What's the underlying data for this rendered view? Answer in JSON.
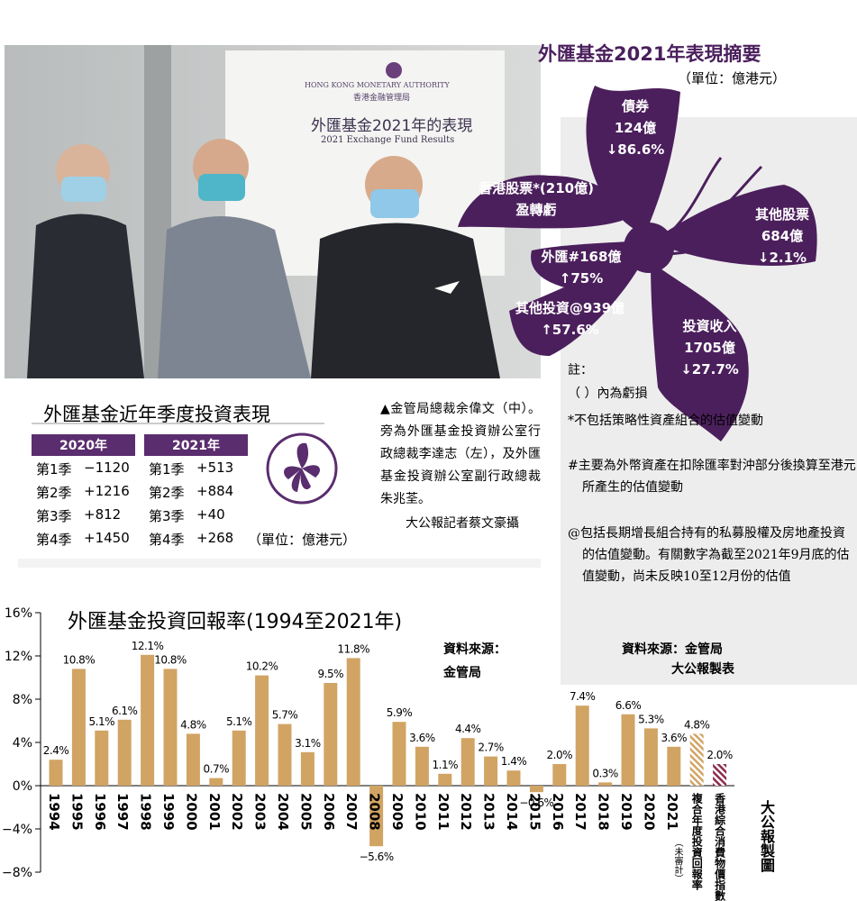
{
  "photo": {
    "backdrop": [
      "HONG KONG MONETARY AUTHORITY",
      "香港金融管理局",
      "外匯基金2021年的表現",
      "2021 Exchange Fund Results"
    ]
  },
  "summary": {
    "title": "外匯基金2021年表現摘要",
    "unit": "（單位：億港元）",
    "items": [
      {
        "lines": [
          "債券",
          "124億",
          "↓86.6%"
        ]
      },
      {
        "lines": [
          "香港股票*(210億)",
          "盈轉虧"
        ]
      },
      {
        "lines": [
          "其他股票",
          "684億",
          "↓2.1%"
        ]
      },
      {
        "lines": [
          "外匯#168億",
          "↑75%"
        ]
      },
      {
        "lines": [
          "其他投資@939億",
          "↑57.6%"
        ]
      },
      {
        "lines": [
          "投資收入",
          "1705億",
          "↓27.7%"
        ]
      }
    ],
    "notes_heading": "註：",
    "notes": [
      "（ ）內為虧損",
      "*不包括策略性資產組合的估值變動",
      "#主要為外幣資產在扣除匯率對沖部分後換算至港元所產生的估值變動",
      "@包括長期增長組合持有的私募股權及房地產投資的估值變動。有關數字為截至2021年9月底的估值變動，尚未反映10至12月份的估值"
    ],
    "source": "資料來源：金管局",
    "credit": "大公報製表"
  },
  "quarterly": {
    "title": "外匯基金近年季度投資表現",
    "unit": "（單位：億港元）",
    "years": [
      {
        "year": "2020年",
        "rows": [
          [
            "第1季",
            "−1120"
          ],
          [
            "第2季",
            "+1216"
          ],
          [
            "第3季",
            "+812"
          ],
          [
            "第4季",
            "+1450"
          ]
        ]
      },
      {
        "year": "2021年",
        "rows": [
          [
            "第1季",
            "+513"
          ],
          [
            "第2季",
            "+884"
          ],
          [
            "第3季",
            "+40"
          ],
          [
            "第4季",
            "+268"
          ]
        ]
      }
    ]
  },
  "caption": {
    "text": "▲金管局總裁余偉文（中）。旁為外匯基金投資辦公室行政總裁李達志（左），及外匯基金投資辦公室副行政總裁朱兆荃。",
    "credit": "大公報記者蔡文豪攝"
  },
  "chart_data": {
    "type": "bar",
    "title": "外匯基金投資回報率(1994至2021年)",
    "source": [
      "資料來源：",
      "金管局"
    ],
    "credit": "大公報製圖",
    "annotation": "（未審計）",
    "categories": [
      "1994",
      "1995",
      "1996",
      "1997",
      "1998",
      "1999",
      "2000",
      "2001",
      "2002",
      "2003",
      "2004",
      "2005",
      "2006",
      "2007",
      "2008",
      "2009",
      "2010",
      "2011",
      "2012",
      "2013",
      "2014",
      "2015",
      "2016",
      "2017",
      "2018",
      "2019",
      "2020",
      "2021",
      "複合年度投資回報率",
      "香港綜合消費物價指數"
    ],
    "values": [
      2.4,
      10.8,
      5.1,
      6.1,
      12.1,
      10.8,
      4.8,
      0.7,
      5.1,
      10.2,
      5.7,
      3.1,
      9.5,
      11.8,
      -5.6,
      5.9,
      3.6,
      1.1,
      4.4,
      2.7,
      1.4,
      -0.6,
      2.0,
      7.4,
      0.3,
      6.6,
      5.3,
      3.6,
      4.8,
      2.0
    ],
    "value_labels": [
      "2.4%",
      "10.8%",
      "5.1%",
      "6.1%",
      "12.1%",
      "10.8%",
      "4.8%",
      "0.7%",
      "5.1%",
      "10.2%",
      "5.7%",
      "3.1%",
      "9.5%",
      "11.8%",
      "−5.6%",
      "5.9%",
      "3.6%",
      "1.1%",
      "4.4%",
      "2.7%",
      "1.4%",
      "−0.6%",
      "2.0%",
      "7.4%",
      "0.3%",
      "6.6%",
      "5.3%",
      "3.6%",
      "4.8%",
      "2.0%"
    ],
    "colors": [
      "#d1a464",
      "#d1a464",
      "#d1a464",
      "#d1a464",
      "#d1a464",
      "#d1a464",
      "#d1a464",
      "#d1a464",
      "#d1a464",
      "#d1a464",
      "#d1a464",
      "#d1a464",
      "#d1a464",
      "#d1a464",
      "#d1a464",
      "#d1a464",
      "#d1a464",
      "#d1a464",
      "#d1a464",
      "#d1a464",
      "#d1a464",
      "#d1a464",
      "#d1a464",
      "#d1a464",
      "#d1a464",
      "#d1a464",
      "#d1a464",
      "#d1a464",
      "#d1a464",
      "#8c2b4b"
    ],
    "patterns": [
      "solid",
      "solid",
      "solid",
      "solid",
      "solid",
      "solid",
      "solid",
      "solid",
      "solid",
      "solid",
      "solid",
      "solid",
      "solid",
      "solid",
      "solid",
      "solid",
      "solid",
      "solid",
      "solid",
      "solid",
      "solid",
      "solid",
      "solid",
      "solid",
      "solid",
      "solid",
      "solid",
      "solid",
      "hatch",
      "hatch"
    ],
    "ylim": [
      -8,
      16
    ],
    "yticks": [
      {
        "value": -8,
        "label": "−8%"
      },
      {
        "value": -4,
        "label": "−4%"
      },
      {
        "value": 0,
        "label": "0%"
      },
      {
        "value": 4,
        "label": "4%"
      },
      {
        "value": 8,
        "label": "8%"
      },
      {
        "value": 12,
        "label": "12%"
      },
      {
        "value": 16,
        "label": "16%"
      }
    ]
  }
}
